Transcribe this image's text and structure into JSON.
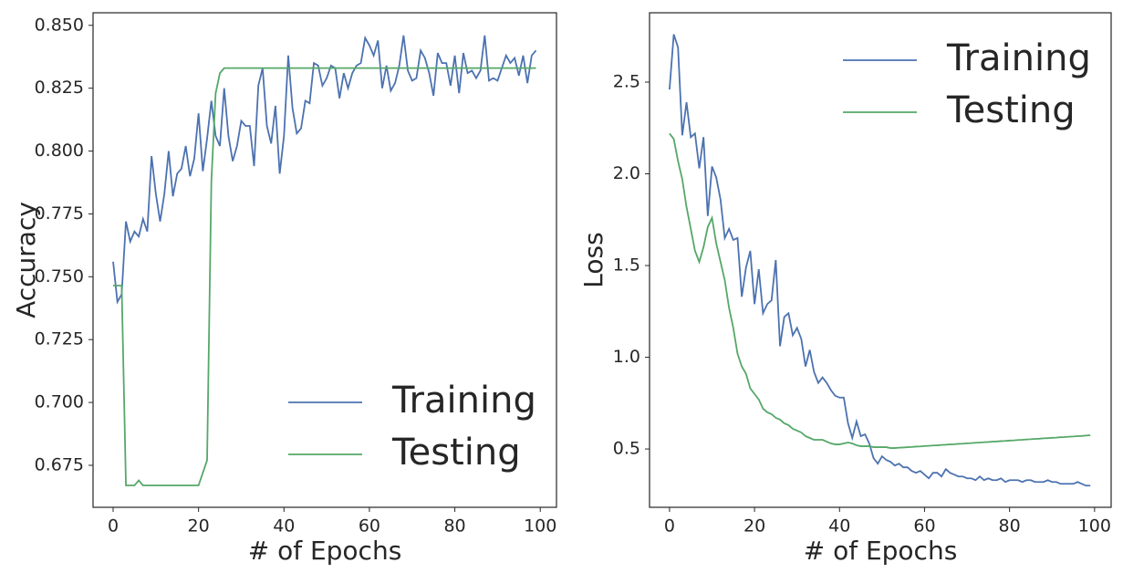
{
  "chart_data": [
    {
      "type": "line",
      "xlabel": "# of Epochs",
      "ylabel": "Accuracy",
      "legend": "lower right",
      "grid": false,
      "xlim": [
        -4.7,
        103.8
      ],
      "ylim": [
        0.6583,
        0.855
      ],
      "xticks": [
        0,
        20,
        40,
        60,
        80,
        100
      ],
      "yticks": [
        {
          "value": 0.675,
          "label": "0.675"
        },
        {
          "value": 0.7,
          "label": "0.700"
        },
        0.725,
        {
          "value": 0.75,
          "label": "0.750"
        },
        0.775,
        {
          "value": 0.8,
          "label": "0.800"
        },
        0.825,
        {
          "value": 0.85,
          "label": "0.850"
        }
      ],
      "x": [
        0,
        1,
        2,
        3,
        4,
        5,
        6,
        7,
        8,
        9,
        10,
        11,
        12,
        13,
        14,
        15,
        16,
        17,
        18,
        19,
        20,
        21,
        22,
        23,
        24,
        25,
        26,
        27,
        28,
        29,
        30,
        31,
        32,
        33,
        34,
        35,
        36,
        37,
        38,
        39,
        40,
        41,
        42,
        43,
        44,
        45,
        46,
        47,
        48,
        49,
        50,
        51,
        52,
        53,
        54,
        55,
        56,
        57,
        58,
        59,
        60,
        61,
        62,
        63,
        64,
        65,
        66,
        67,
        68,
        69,
        70,
        71,
        72,
        73,
        74,
        75,
        76,
        77,
        78,
        79,
        80,
        81,
        82,
        83,
        84,
        85,
        86,
        87,
        88,
        89,
        90,
        91,
        92,
        93,
        94,
        95,
        96,
        97,
        98,
        99
      ],
      "series": [
        {
          "name": "Training",
          "color": "#4c72b0",
          "values": [
            0.756,
            0.74,
            0.743,
            0.772,
            0.764,
            0.768,
            0.766,
            0.773,
            0.768,
            0.798,
            0.783,
            0.772,
            0.783,
            0.8,
            0.782,
            0.791,
            0.793,
            0.802,
            0.79,
            0.797,
            0.815,
            0.792,
            0.805,
            0.82,
            0.806,
            0.802,
            0.825,
            0.806,
            0.796,
            0.802,
            0.812,
            0.81,
            0.81,
            0.794,
            0.826,
            0.833,
            0.81,
            0.803,
            0.818,
            0.791,
            0.806,
            0.838,
            0.817,
            0.807,
            0.809,
            0.82,
            0.819,
            0.835,
            0.834,
            0.826,
            0.829,
            0.834,
            0.833,
            0.821,
            0.831,
            0.825,
            0.831,
            0.834,
            0.835,
            0.845,
            0.842,
            0.838,
            0.844,
            0.825,
            0.834,
            0.824,
            0.827,
            0.834,
            0.846,
            0.832,
            0.828,
            0.829,
            0.84,
            0.837,
            0.831,
            0.822,
            0.839,
            0.835,
            0.835,
            0.826,
            0.838,
            0.823,
            0.839,
            0.831,
            0.832,
            0.829,
            0.832,
            0.846,
            0.828,
            0.829,
            0.828,
            0.833,
            0.838,
            0.835,
            0.837,
            0.83,
            0.838,
            0.827,
            0.838,
            0.84
          ]
        },
        {
          "name": "Testing",
          "color": "#55a868",
          "values": [
            0.7465,
            0.7465,
            0.7465,
            0.667,
            0.667,
            0.667,
            0.669,
            0.667,
            0.667,
            0.667,
            0.667,
            0.667,
            0.667,
            0.667,
            0.667,
            0.667,
            0.667,
            0.667,
            0.667,
            0.667,
            0.667,
            0.672,
            0.677,
            0.788,
            0.823,
            0.831,
            0.833,
            0.833,
            0.833,
            0.833,
            0.833,
            0.833,
            0.833,
            0.833,
            0.833,
            0.833,
            0.833,
            0.833,
            0.833,
            0.833,
            0.833,
            0.833,
            0.833,
            0.833,
            0.833,
            0.833,
            0.833,
            0.833,
            0.833,
            0.833,
            0.833,
            0.833,
            0.833,
            0.833,
            0.833,
            0.833,
            0.833,
            0.833,
            0.833,
            0.833,
            0.833,
            0.833,
            0.833,
            0.833,
            0.833,
            0.833,
            0.833,
            0.833,
            0.833,
            0.833,
            0.833,
            0.833,
            0.833,
            0.833,
            0.833,
            0.833,
            0.833,
            0.833,
            0.833,
            0.833,
            0.833,
            0.833,
            0.833,
            0.833,
            0.833,
            0.833,
            0.833,
            0.833,
            0.833,
            0.833,
            0.833,
            0.833,
            0.833,
            0.833,
            0.833,
            0.833,
            0.833,
            0.833,
            0.833,
            0.833
          ]
        }
      ]
    },
    {
      "type": "line",
      "xlabel": "# of Epochs",
      "ylabel": "Loss",
      "legend": "upper right",
      "grid": false,
      "xlim": [
        -4.7,
        103.9
      ],
      "ylim": [
        0.182,
        2.878
      ],
      "xticks": [
        0,
        20,
        40,
        60,
        80,
        100
      ],
      "yticks": [
        0.5,
        {
          "value": 1.0,
          "label": "1.0"
        },
        1.5,
        {
          "value": 2.0,
          "label": "2.0"
        },
        2.5
      ],
      "x": [
        0,
        1,
        2,
        3,
        4,
        5,
        6,
        7,
        8,
        9,
        10,
        11,
        12,
        13,
        14,
        15,
        16,
        17,
        18,
        19,
        20,
        21,
        22,
        23,
        24,
        25,
        26,
        27,
        28,
        29,
        30,
        31,
        32,
        33,
        34,
        35,
        36,
        37,
        38,
        39,
        40,
        41,
        42,
        43,
        44,
        45,
        46,
        47,
        48,
        49,
        50,
        51,
        52,
        53,
        54,
        55,
        56,
        57,
        58,
        59,
        60,
        61,
        62,
        63,
        64,
        65,
        66,
        67,
        68,
        69,
        70,
        71,
        72,
        73,
        74,
        75,
        76,
        77,
        78,
        79,
        80,
        81,
        82,
        83,
        84,
        85,
        86,
        87,
        88,
        89,
        90,
        91,
        92,
        93,
        94,
        95,
        96,
        97,
        98,
        99
      ],
      "series": [
        {
          "name": "Training",
          "color": "#4c72b0",
          "values": [
            2.46,
            2.76,
            2.69,
            2.21,
            2.39,
            2.2,
            2.22,
            2.03,
            2.2,
            1.77,
            2.04,
            1.98,
            1.86,
            1.65,
            1.7,
            1.64,
            1.65,
            1.33,
            1.49,
            1.58,
            1.29,
            1.48,
            1.24,
            1.29,
            1.31,
            1.53,
            1.06,
            1.22,
            1.24,
            1.12,
            1.16,
            1.1,
            0.95,
            1.04,
            0.92,
            0.86,
            0.89,
            0.86,
            0.82,
            0.79,
            0.78,
            0.78,
            0.64,
            0.56,
            0.65,
            0.57,
            0.58,
            0.53,
            0.45,
            0.42,
            0.46,
            0.44,
            0.43,
            0.41,
            0.42,
            0.4,
            0.4,
            0.38,
            0.37,
            0.38,
            0.36,
            0.34,
            0.37,
            0.37,
            0.35,
            0.39,
            0.37,
            0.36,
            0.35,
            0.35,
            0.34,
            0.34,
            0.33,
            0.35,
            0.33,
            0.34,
            0.33,
            0.33,
            0.34,
            0.32,
            0.33,
            0.33,
            0.33,
            0.32,
            0.33,
            0.33,
            0.32,
            0.32,
            0.32,
            0.33,
            0.32,
            0.32,
            0.31,
            0.31,
            0.31,
            0.31,
            0.32,
            0.31,
            0.3,
            0.3
          ]
        },
        {
          "name": "Testing",
          "color": "#55a868",
          "values": [
            2.22,
            2.19,
            2.07,
            1.97,
            1.82,
            1.7,
            1.58,
            1.52,
            1.6,
            1.71,
            1.76,
            1.62,
            1.52,
            1.42,
            1.27,
            1.16,
            1.02,
            0.95,
            0.91,
            0.83,
            0.8,
            0.77,
            0.72,
            0.7,
            0.69,
            0.67,
            0.66,
            0.64,
            0.63,
            0.61,
            0.6,
            0.59,
            0.57,
            0.56,
            0.55,
            0.55,
            0.55,
            0.54,
            0.53,
            0.525,
            0.525,
            0.53,
            0.535,
            0.53,
            0.52,
            0.515,
            0.515,
            0.515,
            0.51,
            0.51,
            0.51,
            0.51,
            0.505,
            0.505,
            0.507,
            0.508,
            0.51,
            0.511,
            0.513,
            0.514,
            0.516,
            0.517,
            0.519,
            0.52,
            0.522,
            0.523,
            0.525,
            0.526,
            0.528,
            0.529,
            0.531,
            0.532,
            0.534,
            0.535,
            0.537,
            0.538,
            0.54,
            0.541,
            0.543,
            0.544,
            0.546,
            0.547,
            0.549,
            0.55,
            0.552,
            0.553,
            0.555,
            0.556,
            0.558,
            0.559,
            0.561,
            0.562,
            0.564,
            0.565,
            0.567,
            0.568,
            0.57,
            0.571,
            0.573,
            0.575
          ]
        }
      ]
    }
  ]
}
